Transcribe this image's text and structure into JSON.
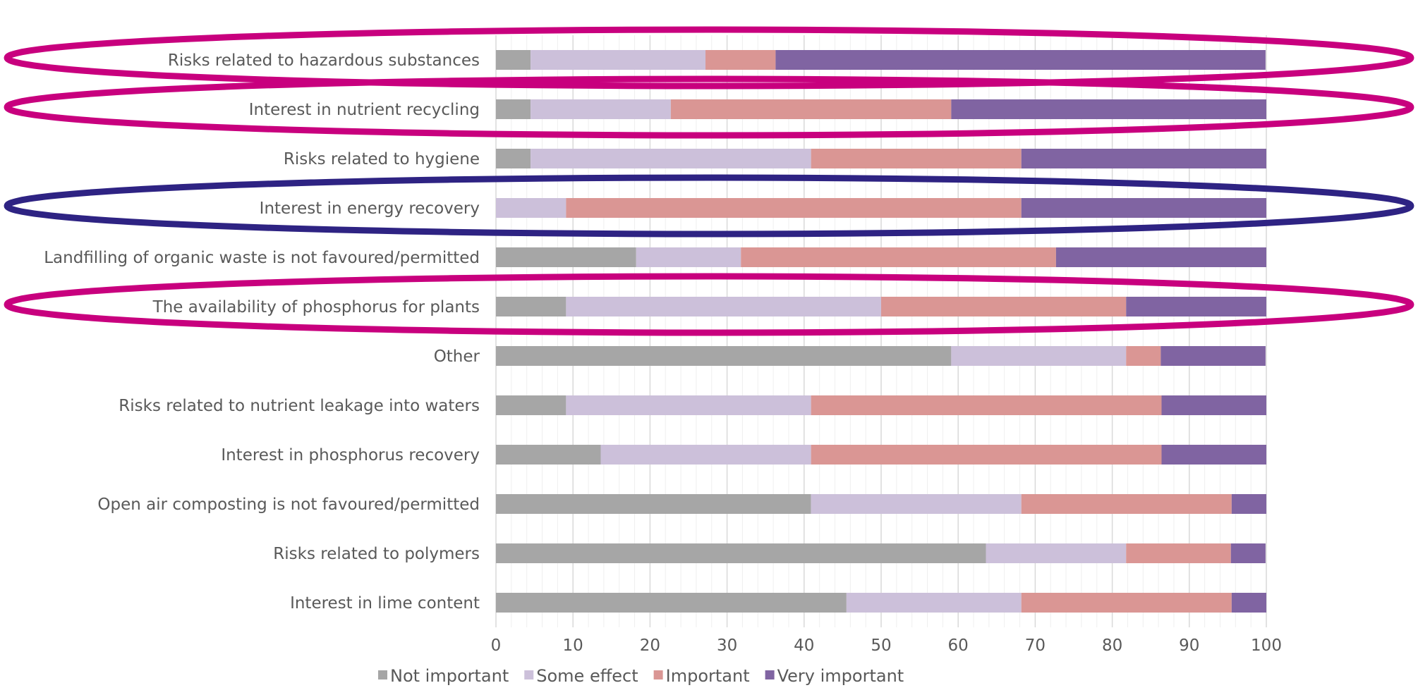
{
  "chart_data": {
    "type": "bar",
    "orientation": "horizontal",
    "stacked": true,
    "title": "",
    "xlabel": "",
    "ylabel": "",
    "xlim": [
      0,
      100
    ],
    "x_ticks": [
      0,
      10,
      20,
      30,
      40,
      50,
      60,
      70,
      80,
      90,
      100
    ],
    "grid": true,
    "legend_position": "bottom",
    "categories": [
      "Risks related to hazardous substances",
      "Interest in nutrient recycling",
      "Risks related to hygiene",
      "Interest in energy recovery",
      "Landfilling of organic waste is not favoured/permitted",
      "The availability of phosphorus for plants",
      "Other",
      "Risks related to nutrient leakage into waters",
      "Interest in phosphorus recovery",
      "Open air composting is not favoured/permitted",
      "Risks related to polymers",
      "Interest in lime content"
    ],
    "series": [
      {
        "name": "Not important",
        "color": "#a6a6a6",
        "values": [
          4.5,
          4.5,
          4.5,
          0,
          18.2,
          9.1,
          59.1,
          9.1,
          13.6,
          40.9,
          63.6,
          45.5
        ]
      },
      {
        "name": "Some effect",
        "color": "#ccc0da",
        "values": [
          22.7,
          18.2,
          36.4,
          9.1,
          13.6,
          40.9,
          22.7,
          31.8,
          27.3,
          27.3,
          18.2,
          22.7
        ]
      },
      {
        "name": "Important",
        "color": "#da9694",
        "values": [
          9.1,
          36.4,
          27.3,
          59.1,
          40.9,
          31.8,
          4.5,
          45.5,
          45.5,
          27.3,
          13.6,
          27.3
        ]
      },
      {
        "name": "Very important",
        "color": "#8064a2",
        "values": [
          63.6,
          40.9,
          31.8,
          31.8,
          27.3,
          18.2,
          13.6,
          13.6,
          13.6,
          4.5,
          4.5,
          4.5
        ]
      }
    ],
    "highlights": [
      {
        "category": "Risks related to hazardous substances",
        "color": "#c8007e"
      },
      {
        "category": "Interest in nutrient recycling",
        "color": "#c8007e"
      },
      {
        "category": "Interest in energy recovery",
        "color": "#2e2383"
      },
      {
        "category": "The availability of phosphorus for plants",
        "color": "#c8007e"
      }
    ]
  }
}
